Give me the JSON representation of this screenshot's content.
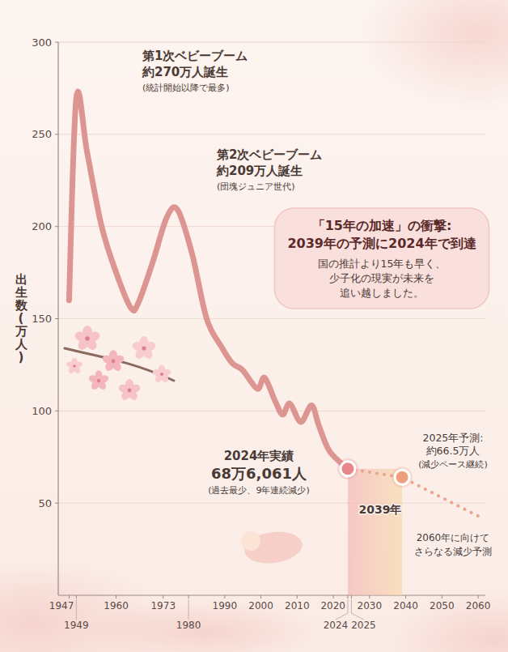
{
  "chart_data": {
    "type": "line",
    "y_label": "出生数(万人)",
    "xlim": [
      1944,
      2062
    ],
    "ylim": [
      0,
      300
    ],
    "xticks": [
      1947,
      1949,
      1960,
      1973,
      1980,
      1990,
      2000,
      2010,
      2020,
      2024,
      2025,
      2030,
      2040,
      2050,
      2060
    ],
    "yticks": [
      50,
      100,
      150,
      200,
      250,
      300
    ],
    "grid": true,
    "series": [
      {
        "x": [
          1947,
          1949,
          1952,
          1956,
          1960,
          1964,
          1966,
          1970,
          1974,
          1977,
          1981,
          1985,
          1989,
          1992,
          1995,
          1999,
          2001,
          2004,
          2006,
          2008,
          2011,
          2014,
          2016,
          2019,
          2024
        ],
        "values": [
          160,
          270,
          240,
          200,
          175,
          156,
          158,
          180,
          205,
          209,
          185,
          150,
          135,
          126,
          122,
          112,
          118,
          105,
          98,
          104,
          94,
          103,
          92,
          78,
          68.6061
        ],
        "color": "#dc9590",
        "line_style": "solid"
      },
      {
        "x": [
          2024,
          2039,
          2060
        ],
        "values": [
          68.6061,
          64,
          43
        ],
        "color": "#e8a88f",
        "line_style": "dotted"
      }
    ],
    "highlights": [
      {
        "x": 2024,
        "value": 68.6061,
        "color": "#e8878a"
      },
      {
        "x": 2039,
        "value": 64,
        "color": "#eea07a"
      }
    ],
    "band": {
      "from": 2024,
      "to": 2039
    },
    "annotations": [
      [
        "第1次ベビーブーム",
        "約270万人誕生",
        "(統計開始以降で最多)"
      ],
      [
        "第2次ベビーブーム",
        "約209万人誕生",
        "(団塊ジュニア世代)"
      ],
      [
        "「15年の加速」の衝撃:",
        "2039年の予測に2024年で到達",
        "国の推計より15年も早く、",
        "少子化の現実が未来を",
        "追い越しました。"
      ],
      [
        "2024年実績",
        "68万6,061人",
        "(過去最少、9年連続減少)"
      ],
      [
        "2025年予測:",
        "約66.5万人",
        "(減少ペース継続)"
      ],
      [
        "2039年"
      ],
      [
        "2060年に向けて",
        "さらなる減少予測"
      ]
    ]
  }
}
